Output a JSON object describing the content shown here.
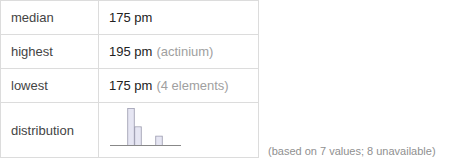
{
  "table": {
    "rows": [
      {
        "label": "median",
        "value": "175 pm"
      },
      {
        "label": "highest",
        "value": "195 pm",
        "note": "(actinium)"
      },
      {
        "label": "lowest",
        "value": "175 pm",
        "note": "(4 elements)"
      },
      {
        "label": "distribution"
      }
    ]
  },
  "footnote": "(based on 7 values; 8 unavailable)",
  "chart_data": {
    "type": "histogram",
    "bins": [
      175,
      179,
      183,
      187,
      191,
      195
    ],
    "counts": [
      4,
      2,
      0,
      0,
      1
    ],
    "ylim": [
      0,
      4
    ],
    "color": "#e6e6f3",
    "tick_labels": false,
    "grid": false
  }
}
